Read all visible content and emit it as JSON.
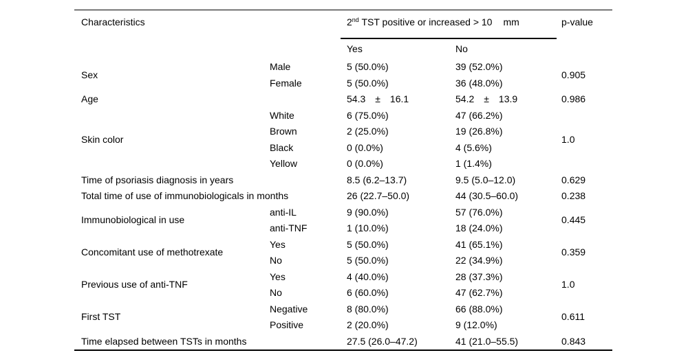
{
  "colors": {
    "background": "#ffffff",
    "text": "#000000",
    "rule": "#000000"
  },
  "table": {
    "header": {
      "characteristics": "Characteristics",
      "spanner": {
        "base": "2",
        "sup": "nd",
        "rest": " TST positive or increased > 10",
        "unit": "mm"
      },
      "p_value": "p-value",
      "yes": "Yes",
      "no": "No"
    },
    "groups": [
      {
        "label": "Sex",
        "p": "0.905",
        "rows": [
          {
            "sub": "Male",
            "yes": "5 (50.0%)",
            "no": "39 (52.0%)"
          },
          {
            "sub": "Female",
            "yes": "5 (50.0%)",
            "no": "36 (48.0%)"
          }
        ]
      },
      {
        "label": "Age",
        "p": "0.986",
        "rows": [
          {
            "sub": "",
            "yes": "54.3  ±  16.1",
            "no": "54.2  ±  13.9"
          }
        ]
      },
      {
        "label": "Skin color",
        "p": "1.0",
        "rows": [
          {
            "sub": "White",
            "yes": "6 (75.0%)",
            "no": "47 (66.2%)"
          },
          {
            "sub": "Brown",
            "yes": "2 (25.0%)",
            "no": "19 (26.8%)"
          },
          {
            "sub": "Black",
            "yes": "0 (0.0%)",
            "no": "4 (5.6%)"
          },
          {
            "sub": "Yellow",
            "yes": "0 (0.0%)",
            "no": "1 (1.4%)"
          }
        ]
      },
      {
        "label": "Time of psoriasis diagnosis in years",
        "p": "0.629",
        "rows": [
          {
            "sub": "",
            "yes": "8.5 (6.2–13.7)",
            "no": "9.5 (5.0–12.0)"
          }
        ]
      },
      {
        "label": "Total time of use of immunobiologicals in months",
        "p": "0.238",
        "rows": [
          {
            "sub": "",
            "yes": "26 (22.7–50.0)",
            "no": "44 (30.5–60.0)"
          }
        ]
      },
      {
        "label": "Immunobiological in use",
        "p": "0.445",
        "rows": [
          {
            "sub": "anti-IL",
            "yes": "9 (90.0%)",
            "no": "57 (76.0%)"
          },
          {
            "sub": "anti-TNF",
            "yes": "1 (10.0%)",
            "no": "18 (24.0%)"
          }
        ]
      },
      {
        "label": "Concomitant use of methotrexate",
        "p": "0.359",
        "rows": [
          {
            "sub": "Yes",
            "yes": "5 (50.0%)",
            "no": "41 (65.1%)"
          },
          {
            "sub": "No",
            "yes": "5 (50.0%)",
            "no": "22 (34.9%)"
          }
        ]
      },
      {
        "label": "Previous use of anti-TNF",
        "p": "1.0",
        "rows": [
          {
            "sub": "Yes",
            "yes": "4 (40.0%)",
            "no": "28 (37.3%)"
          },
          {
            "sub": "No",
            "yes": "6 (60.0%)",
            "no": "47 (62.7%)"
          }
        ]
      },
      {
        "label": "First TST",
        "p": "0.611",
        "rows": [
          {
            "sub": "Negative",
            "yes": "8 (80.0%)",
            "no": "66 (88.0%)"
          },
          {
            "sub": "Positive",
            "yes": "2 (20.0%)",
            "no": "9 (12.0%)"
          }
        ]
      },
      {
        "label": "Time elapsed between TSTs in months",
        "p": "0.843",
        "rows": [
          {
            "sub": "",
            "yes": "27.5 (26.0–47.2)",
            "no": "41 (21.0–55.5)"
          }
        ]
      }
    ]
  }
}
